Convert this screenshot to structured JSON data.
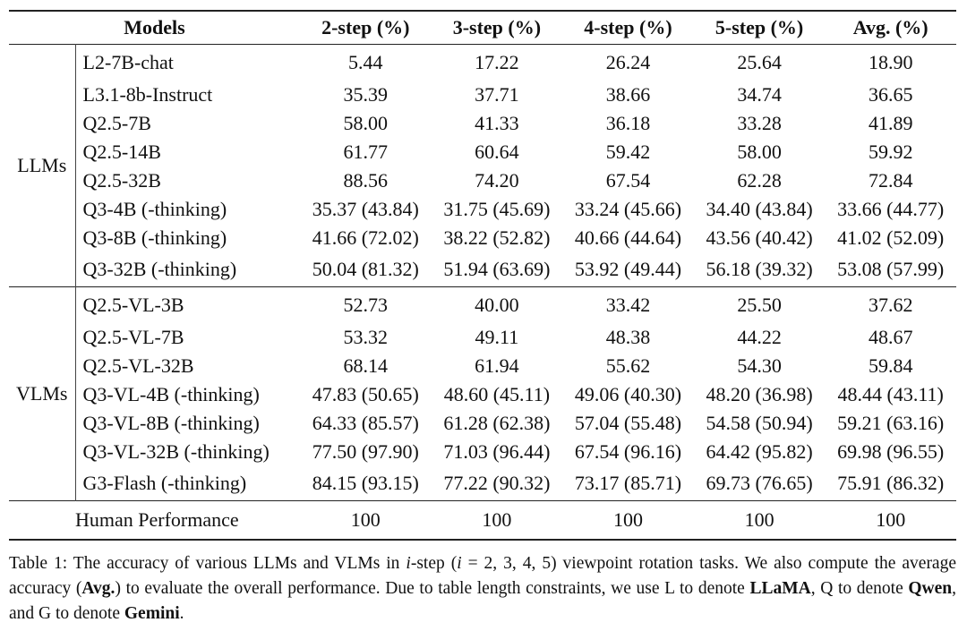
{
  "header": [
    "Models",
    "2-step (%)",
    "3-step (%)",
    "4-step (%)",
    "5-step (%)",
    "Avg. (%)"
  ],
  "sections": [
    {
      "group": "LLMs",
      "rows": [
        {
          "model": "L2-7B-chat",
          "values": [
            "5.44",
            "17.22",
            "26.24",
            "25.64",
            "18.90"
          ]
        },
        {
          "model": "L3.1-8b-Instruct",
          "values": [
            "35.39",
            "37.71",
            "38.66",
            "34.74",
            "36.65"
          ]
        },
        {
          "model": "Q2.5-7B",
          "values": [
            "58.00",
            "41.33",
            "36.18",
            "33.28",
            "41.89"
          ]
        },
        {
          "model": "Q2.5-14B",
          "values": [
            "61.77",
            "60.64",
            "59.42",
            "58.00",
            "59.92"
          ]
        },
        {
          "model": "Q2.5-32B",
          "values": [
            "88.56",
            "74.20",
            "67.54",
            "62.28",
            "72.84"
          ]
        },
        {
          "model": "Q3-4B (-thinking)",
          "values": [
            "35.37 (43.84)",
            "31.75 (45.69)",
            "33.24 (45.66)",
            "34.40 (43.84)",
            "33.66 (44.77)"
          ]
        },
        {
          "model": "Q3-8B (-thinking)",
          "values": [
            "41.66 (72.02)",
            "38.22 (52.82)",
            "40.66 (44.64)",
            "43.56 (40.42)",
            "41.02 (52.09)"
          ]
        },
        {
          "model": "Q3-32B (-thinking)",
          "values": [
            "50.04 (81.32)",
            "51.94 (63.69)",
            "53.92 (49.44)",
            "56.18 (39.32)",
            "53.08 (57.99)"
          ]
        }
      ]
    },
    {
      "group": "VLMs",
      "rows": [
        {
          "model": "Q2.5-VL-3B",
          "values": [
            "52.73",
            "40.00",
            "33.42",
            "25.50",
            "37.62"
          ]
        },
        {
          "model": "Q2.5-VL-7B",
          "values": [
            "53.32",
            "49.11",
            "48.38",
            "44.22",
            "48.67"
          ]
        },
        {
          "model": "Q2.5-VL-32B",
          "values": [
            "68.14",
            "61.94",
            "55.62",
            "54.30",
            "59.84"
          ]
        },
        {
          "model": "Q3-VL-4B (-thinking)",
          "values": [
            "47.83 (50.65)",
            "48.60 (45.11)",
            "49.06 (40.30)",
            "48.20 (36.98)",
            "48.44 (43.11)"
          ]
        },
        {
          "model": "Q3-VL-8B (-thinking)",
          "values": [
            "64.33 (85.57)",
            "61.28 (62.38)",
            "57.04 (55.48)",
            "54.58 (50.94)",
            "59.21 (63.16)"
          ]
        },
        {
          "model": "Q3-VL-32B (-thinking)",
          "values": [
            "77.50 (97.90)",
            "71.03 (96.44)",
            "67.54 (96.16)",
            "64.42 (95.82)",
            "69.98 (96.55)"
          ]
        },
        {
          "model": "G3-Flash (-thinking)",
          "values": [
            "84.15 (93.15)",
            "77.22 (90.32)",
            "73.17 (85.71)",
            "69.73 (76.65)",
            "75.91 (86.32)"
          ]
        }
      ]
    }
  ],
  "human": {
    "model": "Human Performance",
    "values": [
      "100",
      "100",
      "100",
      "100",
      "100"
    ]
  },
  "caption": {
    "p1": "Table 1: The accuracy of various LLMs and VLMs in ",
    "i": "i",
    "p2": "-step (",
    "math_i": "i",
    "math_rest": " = 2, 3, 4, 5",
    "p3": ") viewpoint rotation tasks. We also compute the average accuracy (",
    "avg": "Avg.",
    "p4": ") to evaluate the overall performance. Due to table length constraints, we use L to denote ",
    "llama": "LLaMA",
    "p5": ", Q to denote ",
    "qwen": "Qwen",
    "p6": ", and G to denote ",
    "gemini": "Gemini",
    "p7": "."
  }
}
